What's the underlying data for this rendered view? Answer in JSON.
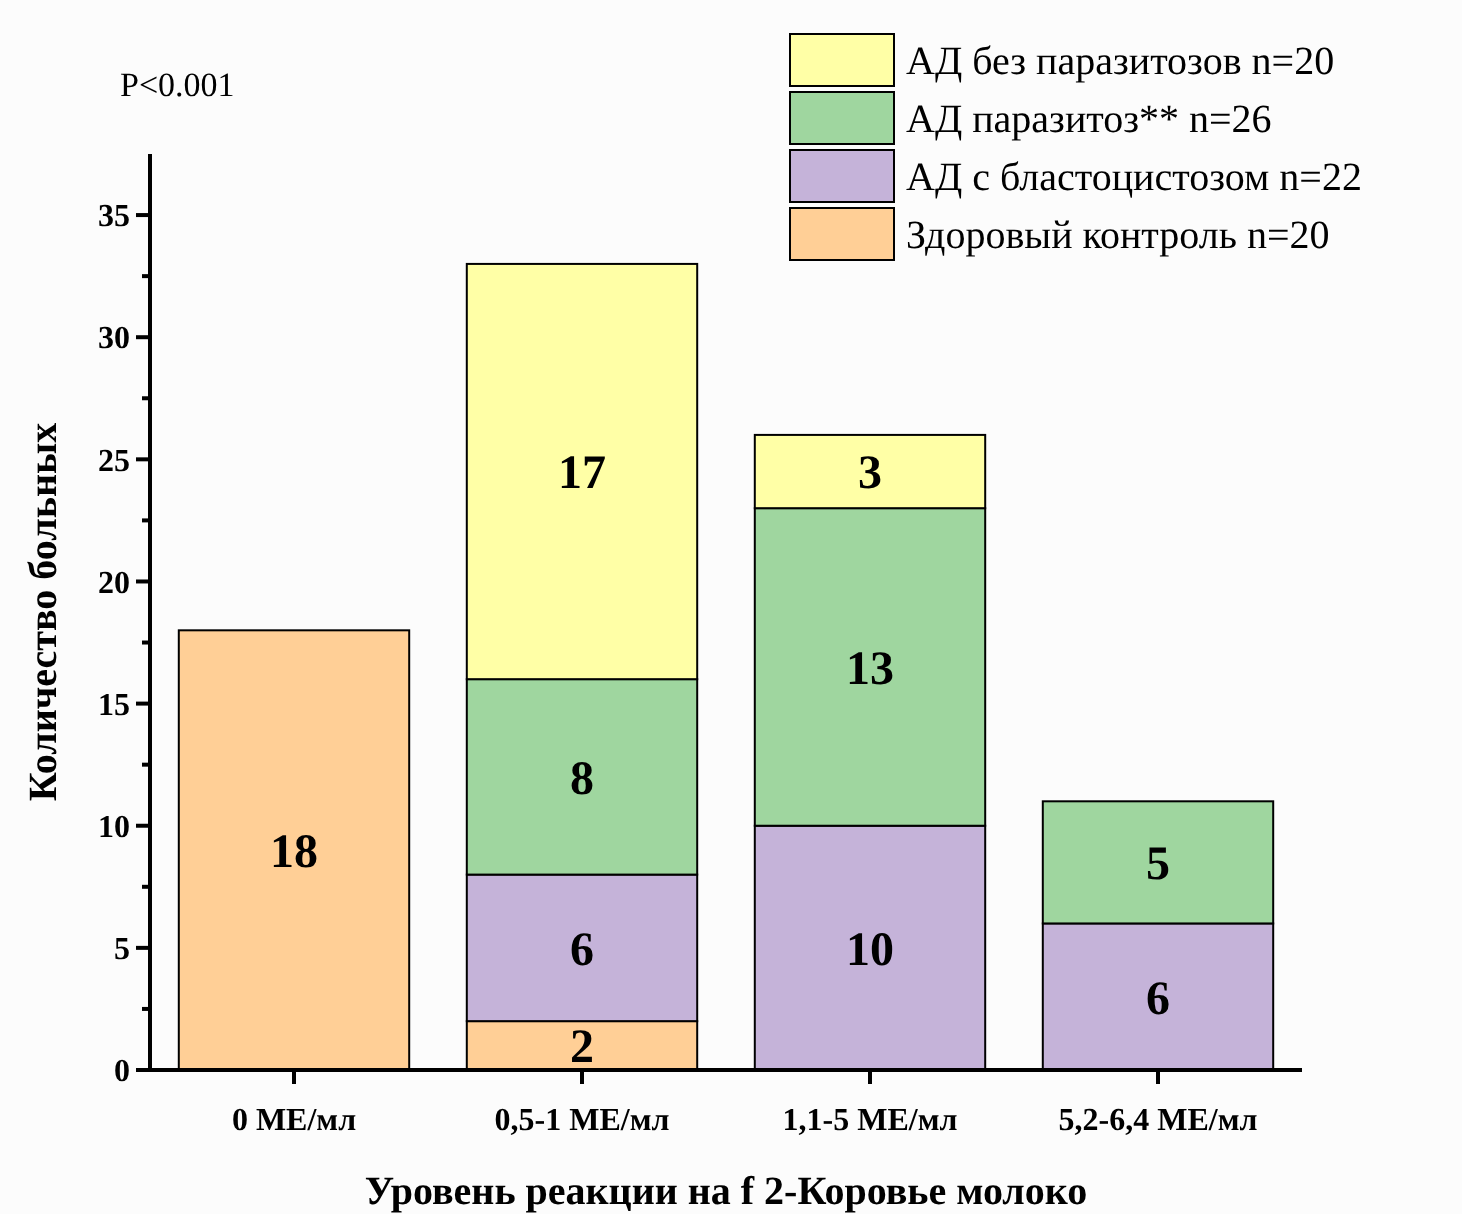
{
  "chart_data": {
    "type": "bar",
    "stacked": true,
    "categories": [
      "0 МЕ/мл",
      "0,5-1 МЕ/мл",
      "1,1-5 МЕ/мл",
      "5,2-6,4 МЕ/мл"
    ],
    "series": [
      {
        "name": "Здоровый контроль n=20",
        "color": "#ffcf96",
        "values": [
          18,
          2,
          null,
          null
        ]
      },
      {
        "name": "АД с бластоцистозом n=22",
        "color": "#c5b3d9",
        "values": [
          null,
          6,
          10,
          6
        ]
      },
      {
        "name": "АД паразитоз** n=26",
        "color": "#9fd69f",
        "values": [
          null,
          8,
          13,
          5
        ]
      },
      {
        "name": "АД без паразитозов n=20",
        "color": "#ffffa6",
        "values": [
          null,
          17,
          3,
          null
        ]
      }
    ],
    "ylim": [
      0,
      37.5
    ],
    "yticks": [
      0,
      {
        "value": 2.5,
        "label": null
      },
      5,
      {
        "value": 7.5,
        "label": null
      },
      10,
      {
        "value": 12.5,
        "label": null
      },
      15,
      {
        "value": 17.5,
        "label": null
      },
      20,
      {
        "value": 22.5,
        "label": null
      },
      25,
      {
        "value": 27.5,
        "label": null
      },
      30,
      {
        "value": 32.5,
        "label": null
      },
      35
    ],
    "xlabel": "Уровень реакции на f 2-Коровье молоко",
    "ylabel": "Количество больных",
    "annotations": [
      "P<0.001"
    ],
    "data_labels": true,
    "legend": "top right",
    "grid": false
  }
}
